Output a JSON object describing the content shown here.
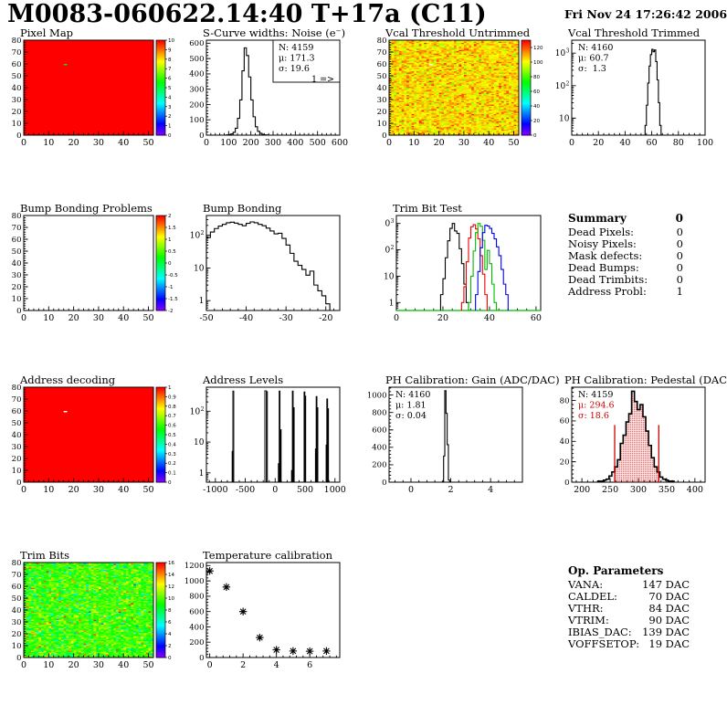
{
  "header": {
    "title": "M0083-060622.14:40 T+17a (C11)",
    "date": "Fri Nov 24 17:26:42 2006"
  },
  "summary": {
    "title": "Summary",
    "title_value": "0",
    "rows": [
      {
        "label": "Dead Pixels:",
        "value": "0"
      },
      {
        "label": "Noisy Pixels:",
        "value": "0"
      },
      {
        "label": "Mask defects:",
        "value": "0"
      },
      {
        "label": "Dead Bumps:",
        "value": "0"
      },
      {
        "label": "Dead Trimbits:",
        "value": "0"
      },
      {
        "label": "Address Probl:",
        "value": "1"
      }
    ]
  },
  "op_parameters": {
    "title": "Op. Parameters",
    "rows": [
      {
        "label": "VANA:",
        "value": "147 DAC"
      },
      {
        "label": "CALDEL:",
        "value": "70 DAC"
      },
      {
        "label": "VTHR:",
        "value": "84 DAC"
      },
      {
        "label": "VTRIM:",
        "value": "90 DAC"
      },
      {
        "label": "IBIAS_DAC:",
        "value": "139 DAC"
      },
      {
        "label": "VOFFSETOP:",
        "value": "19 DAC"
      }
    ]
  },
  "chart_data": [
    {
      "id": "pixel-map",
      "type": "heatmap",
      "title": "Pixel Map",
      "xlim": [
        0,
        52
      ],
      "ylim": [
        0,
        80
      ],
      "xticks": [
        0,
        10,
        20,
        30,
        40,
        50
      ],
      "yticks": [
        0,
        10,
        20,
        30,
        40,
        50,
        60,
        70,
        80
      ],
      "grid": [
        52,
        80
      ],
      "fill": "solid",
      "color": "#ff0000",
      "zlim": [
        0,
        10
      ],
      "colorbar": [
        0,
        1,
        2,
        3,
        4,
        5,
        6,
        7,
        8,
        9,
        10
      ],
      "defects": [
        {
          "x": 16,
          "y": 59,
          "color": "#22dd00"
        }
      ]
    },
    {
      "id": "scurve-noise",
      "type": "hist",
      "title": "S-Curve widths: Noise (e⁻)",
      "xlim": [
        0,
        600
      ],
      "ylim": [
        0,
        620
      ],
      "xticks": [
        0,
        100,
        200,
        300,
        400,
        500,
        600
      ],
      "yticks": [
        0,
        100,
        200,
        300,
        400,
        500,
        600
      ],
      "series": [
        {
          "color": "#000000",
          "bins": {
            "x0": 90,
            "dx": 10,
            "values": [
              2,
              4,
              8,
              18,
              45,
              110,
              230,
              420,
              570,
              520,
              380,
              230,
              120,
              55,
              25,
              12,
              5,
              2,
              1
            ]
          }
        }
      ],
      "stats": {
        "box": true,
        "lines": [
          {
            "text": "N: 4159"
          },
          {
            "text": "μ: 171.3"
          },
          {
            "text": "σ: 19.6"
          },
          {
            "text": "1 =>",
            "align": "r"
          }
        ]
      }
    },
    {
      "id": "vcal-untrimmed",
      "type": "heatmap",
      "title": "Vcal Threshold Untrimmed",
      "xlim": [
        0,
        52
      ],
      "ylim": [
        0,
        80
      ],
      "xticks": [
        0,
        10,
        20,
        30,
        40,
        50
      ],
      "yticks": [
        0,
        10,
        20,
        30,
        40,
        50,
        60,
        70,
        80
      ],
      "grid": [
        52,
        80
      ],
      "zlim": [
        0,
        130
      ],
      "colorbar": [
        0,
        20,
        40,
        60,
        80,
        100,
        120
      ],
      "seed": 7,
      "noise": {
        "mean": 103,
        "sd": 6.5,
        "hi_frac": 0.15,
        "hi_shift": 12,
        "clip": [
          86,
          127
        ]
      },
      "defects": [
        {
          "x": 16,
          "y": 59,
          "color": "#ffffff"
        }
      ]
    },
    {
      "id": "vcal-trimmed",
      "type": "hist",
      "title": "Vcal Threshold Trimmed",
      "ylog": true,
      "xlim": [
        0,
        100
      ],
      "ylim": [
        3,
        2500
      ],
      "xticks": [
        0,
        20,
        40,
        60,
        80,
        100
      ],
      "series": [
        {
          "color": "#000000",
          "bins": {
            "x0": 54,
            "dx": 1,
            "values": [
              2,
              6,
              25,
              120,
              400,
              900,
              1300,
              1100,
              1250,
              550,
              150,
              30,
              6,
              2
            ]
          }
        }
      ],
      "stats": {
        "lines": [
          {
            "text": "N: 4160"
          },
          {
            "text": "μ: 60.7"
          },
          {
            "text": "σ:  1.3"
          }
        ]
      }
    },
    {
      "id": "bump-problems",
      "type": "heatmap",
      "title": "Bump Bonding Problems",
      "xlim": [
        0,
        52
      ],
      "ylim": [
        0,
        80
      ],
      "xticks": [
        0,
        10,
        20,
        30,
        40,
        50
      ],
      "yticks": [
        0,
        10,
        20,
        30,
        40,
        50,
        60,
        70,
        80
      ],
      "grid": [
        52,
        80
      ],
      "zlim": [
        -2,
        2
      ],
      "colorbar": [
        -2,
        -1.5,
        -1,
        -0.5,
        0,
        0.5,
        1,
        1.5,
        2
      ]
    },
    {
      "id": "bump-bonding",
      "type": "hist",
      "title": "Bump Bonding",
      "ylog": true,
      "xlim": [
        -50,
        -16.5
      ],
      "ylim": [
        0.5,
        400
      ],
      "xticks": [
        -50,
        -40,
        -30,
        -20
      ],
      "series": [
        {
          "color": "#000000",
          "bins": {
            "x0": -50,
            "dx": 1,
            "values": [
              85,
              125,
              160,
              190,
              215,
              240,
              250,
              235,
              215,
              195,
              230,
              255,
              240,
              215,
              195,
              165,
              135,
              110,
              115,
              80,
              50,
              28,
              16,
              12,
              9,
              6,
              8,
              3,
              2,
              1.4,
              0.8
            ]
          }
        }
      ]
    },
    {
      "id": "trim-bit-test",
      "type": "hist",
      "title": "Trim Bit Test",
      "ylog": true,
      "xlim": [
        0,
        62
      ],
      "ylim": [
        0.5,
        2000
      ],
      "xticks": [
        0,
        20,
        40,
        60
      ],
      "frame": {
        "x0": 14,
        "x1": 172
      },
      "green_axis": "#00bb00",
      "series": [
        {
          "color": "#000000",
          "bins": {
            "x0": 19,
            "dx": 1,
            "values": [
              2,
              8,
              50,
              220,
              650,
              1000,
              520,
              420,
              110,
              30,
              5,
              1
            ]
          }
        },
        {
          "color": "#ee0000",
          "bins": {
            "x0": 28,
            "dx": 1,
            "values": [
              1,
              4,
              35,
              280,
              750,
              900,
              620,
              260,
              60,
              12,
              2
            ]
          }
        },
        {
          "color": "#00bb00",
          "bins": {
            "x0": 31,
            "dx": 1,
            "values": [
              1,
              10,
              90,
              450,
              1000,
              780,
              230,
              18,
              95,
              30,
              5,
              1
            ]
          }
        },
        {
          "color": "#0000ee",
          "bins": {
            "x0": 34,
            "dx": 1,
            "values": [
              2,
              15,
              120,
              450,
              850,
              800,
              650,
              420,
              260,
              130,
              60,
              18,
              5,
              2
            ]
          }
        }
      ]
    },
    {
      "id": "address-decoding",
      "type": "heatmap",
      "title": "Address decoding",
      "xlim": [
        0,
        52
      ],
      "ylim": [
        0,
        80
      ],
      "xticks": [
        0,
        10,
        20,
        30,
        40,
        50
      ],
      "yticks": [
        0,
        10,
        20,
        30,
        40,
        50,
        60,
        70,
        80
      ],
      "grid": [
        52,
        80
      ],
      "fill": "solid",
      "color": "#ff0000",
      "zlim": [
        0,
        1
      ],
      "colorbar": [
        0,
        0.1,
        0.2,
        0.3,
        0.4,
        0.5,
        0.6,
        0.7,
        0.8,
        0.9,
        1
      ],
      "defects": [
        {
          "x": 16,
          "y": 59,
          "color": "#ffffff"
        }
      ]
    },
    {
      "id": "address-levels",
      "type": "hist",
      "title": "Address Levels",
      "ylog": true,
      "xlim": [
        -1150,
        1080
      ],
      "ylim": [
        0.5,
        600
      ],
      "xticks": [
        -1000,
        -500,
        0,
        500,
        1000
      ],
      "spikes": [
        [
          -715,
          5,
          10
        ],
        [
          -700,
          450,
          16
        ],
        [
          -160,
          460,
          26
        ],
        [
          -138,
          430,
          16
        ],
        [
          58,
          2,
          10
        ],
        [
          74,
          450,
          14
        ],
        [
          94,
          25,
          12
        ],
        [
          278,
          1.2,
          10
        ],
        [
          294,
          450,
          14
        ],
        [
          312,
          130,
          12
        ],
        [
          490,
          420,
          14
        ],
        [
          505,
          310,
          12
        ],
        [
          678,
          6,
          10
        ],
        [
          692,
          300,
          14
        ],
        [
          708,
          130,
          12
        ],
        [
          856,
          8,
          10
        ],
        [
          870,
          250,
          14
        ],
        [
          886,
          120,
          12
        ]
      ]
    },
    {
      "id": "ph-gain",
      "type": "hist",
      "title": "PH Calibration: Gain (ADC/DAC)",
      "xlim": [
        -1.1,
        5.6
      ],
      "ylim": [
        0,
        1090
      ],
      "xticks": [
        0,
        2,
        4
      ],
      "yticks": [
        0,
        200,
        400,
        600,
        800,
        1000
      ],
      "series": [
        {
          "color": "#000000",
          "bins": {
            "x0": 1.58,
            "dx": 0.06,
            "values": [
              8,
              300,
              1050,
              790,
              430,
              25,
              4
            ]
          }
        }
      ],
      "stats": {
        "lines": [
          {
            "text": "N: 4160"
          },
          {
            "text": "μ: 1.81"
          },
          {
            "text": "σ: 0.04"
          }
        ]
      }
    },
    {
      "id": "ph-pedestal",
      "type": "hist",
      "title": "PH Calibration: Pedestal (DAC)",
      "xlim": [
        182,
        418
      ],
      "ylim": [
        0,
        93
      ],
      "xticks": [
        200,
        250,
        300,
        350,
        400
      ],
      "yticks": [
        0,
        20,
        40,
        60,
        80
      ],
      "fill_range": [
        258,
        336
      ],
      "series": [
        {
          "color": "#000000",
          "lw": 1.6,
          "fill": "dots",
          "bins": {
            "x0": 228,
            "dx": 5,
            "values": [
              1,
              1,
              2,
              3,
              6,
              10,
              15,
              22,
              38,
              46,
              59,
              67,
              89,
              79,
              71,
              76,
              64,
              50,
              36,
              24,
              15,
              10,
              5,
              3,
              2,
              1,
              1
            ]
          }
        }
      ],
      "vlines": [
        {
          "x": 258,
          "top": 56,
          "color": "#cc0000"
        },
        {
          "x": 336,
          "top": 56,
          "color": "#cc0000"
        }
      ],
      "stats": {
        "lines": [
          {
            "text": "N: 4159"
          },
          {
            "text": "μ: 294.6",
            "color": "#cc0000"
          },
          {
            "text": "σ: 18.6",
            "color": "#cc0000"
          }
        ]
      }
    },
    {
      "id": "trim-bits",
      "type": "heatmap",
      "title": "Trim Bits",
      "xlim": [
        0,
        52
      ],
      "ylim": [
        0,
        80
      ],
      "xticks": [
        0,
        10,
        20,
        30,
        40,
        50
      ],
      "yticks": [
        0,
        10,
        20,
        30,
        40,
        50,
        60,
        70,
        80
      ],
      "grid": [
        52,
        80
      ],
      "zlim": [
        0,
        16
      ],
      "colorbar": [
        0,
        2,
        4,
        6,
        8,
        10,
        12,
        14,
        16
      ],
      "seed": 12,
      "noise": {
        "mean": 9.7,
        "sd": 1.1,
        "hi_frac": 0.05,
        "hi_shift": 3.6,
        "lo_frac": 0.05,
        "lo_shift": -3.6,
        "clip": [
          1,
          15.5
        ]
      }
    },
    {
      "id": "temperature-calibration",
      "type": "scatter",
      "title": "Temperature calibration",
      "xlim": [
        -0.2,
        7.8
      ],
      "ylim": [
        0,
        1240
      ],
      "xticks": [
        0,
        2,
        4,
        6
      ],
      "yticks": [
        0,
        200,
        400,
        600,
        800,
        1000,
        1200
      ],
      "points": [
        [
          0,
          1130
        ],
        [
          1,
          920
        ],
        [
          2,
          600
        ],
        [
          3,
          260
        ],
        [
          4,
          100
        ],
        [
          5,
          85
        ],
        [
          6,
          82
        ],
        [
          7,
          85
        ]
      ]
    }
  ]
}
